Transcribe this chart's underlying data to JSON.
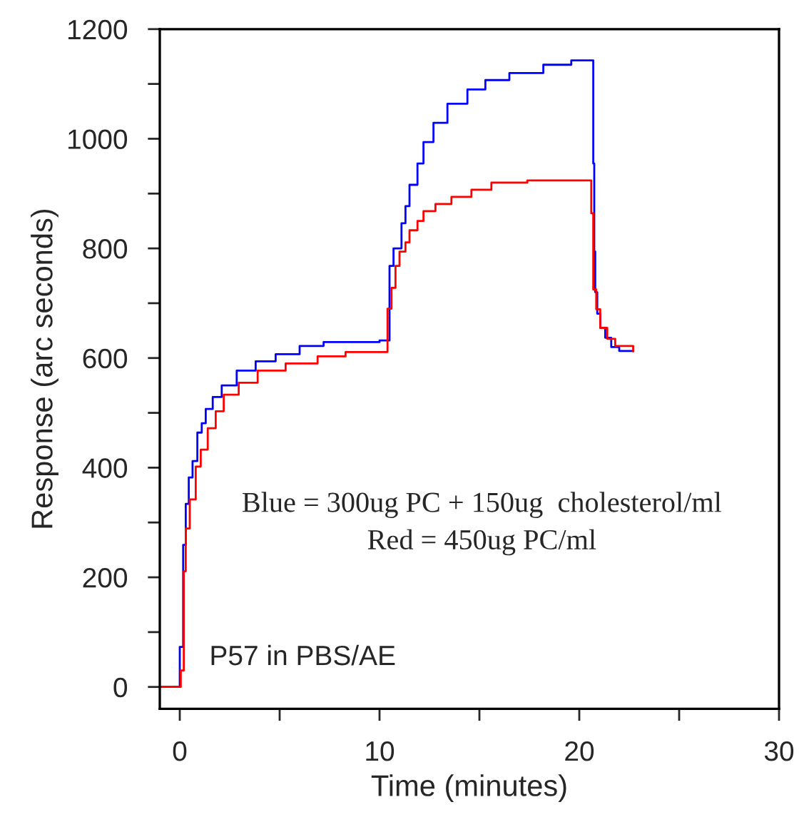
{
  "chart_data": {
    "type": "step",
    "xlabel": "Time (minutes)",
    "ylabel": "Response (arc seconds)",
    "xlim": [
      -1,
      30
    ],
    "ylim": [
      -40,
      1200
    ],
    "xticks": [
      0,
      {
        "value": 5,
        "label": null
      },
      10,
      {
        "value": 15,
        "label": null
      },
      20,
      {
        "value": 25,
        "label": null
      },
      30
    ],
    "yticks": [
      0,
      {
        "value": 100,
        "label": null
      },
      200,
      {
        "value": 300,
        "label": null
      },
      400,
      {
        "value": 500,
        "label": null
      },
      600,
      {
        "value": 700,
        "label": null
      },
      800,
      {
        "value": 900,
        "label": null
      },
      1000,
      {
        "value": 1100,
        "label": null
      },
      1200
    ],
    "grid": false,
    "annotations": [
      "Blue = 300ug PC + 150ug  cholesterol/ml",
      "Red = 450ug PC/ml",
      "P57 in PBS/AE"
    ],
    "series": [
      {
        "color": "#0000ff",
        "x": [
          -1,
          0,
          0.17,
          0.3,
          0.45,
          0.64,
          0.88,
          1.1,
          1.3,
          1.65,
          2.1,
          2.85,
          3.8,
          4.8,
          6.0,
          7.2,
          10.0,
          10.5,
          10.7,
          11.1,
          11.3,
          11.5,
          11.9,
          12.2,
          12.7,
          13.4,
          14.4,
          15.3,
          16.5,
          18.2,
          19.6,
          20.7,
          20.75,
          20.8,
          20.9,
          21.05,
          21.3,
          21.6,
          22.0,
          22.7
        ],
        "values": [
          0,
          73,
          259,
          334,
          382,
          412,
          464,
          481,
          507,
          529,
          550,
          577,
          594,
          607,
          622,
          629,
          632,
          768,
          800,
          846,
          877,
          916,
          955,
          994,
          1029,
          1064,
          1090,
          1107,
          1120,
          1135,
          1143,
          955,
          794,
          720,
          681,
          655,
          637,
          620,
          613,
          613
        ]
      },
      {
        "color": "#ff0000",
        "x": [
          -1,
          0.05,
          0.2,
          0.3,
          0.5,
          0.8,
          1.05,
          1.4,
          1.8,
          2.2,
          2.95,
          3.9,
          5.3,
          6.9,
          8.3,
          10.4,
          10.6,
          10.8,
          11.0,
          11.3,
          11.5,
          11.9,
          12.2,
          12.8,
          13.6,
          14.6,
          15.6,
          17.4,
          19.4,
          20.6,
          20.7,
          20.85,
          21.05,
          21.4,
          21.8,
          22.7
        ],
        "values": [
          0,
          30,
          211,
          289,
          342,
          402,
          433,
          472,
          503,
          533,
          555,
          577,
          590,
          603,
          611,
          690,
          728,
          768,
          794,
          811,
          833,
          850,
          868,
          881,
          894,
          907,
          920,
          924,
          924,
          864,
          725,
          689,
          655,
          635,
          622,
          612
        ]
      }
    ]
  }
}
